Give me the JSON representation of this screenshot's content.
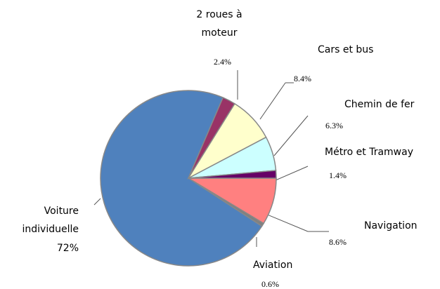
{
  "chart_data": {
    "type": "pie",
    "categories": [
      "Navigation",
      "Aviation",
      "Voiture individuelle",
      "2 roues à moteur",
      "Cars et bus",
      "Chemin de fer",
      "Métro et Tramway"
    ],
    "values": [
      8.6,
      0.6,
      72,
      2.4,
      8.4,
      6.3,
      1.4
    ],
    "value_labels": [
      "8.6%",
      "0.6%",
      "72%",
      "2.4%",
      "8.4%",
      "6.3%",
      "1.4%"
    ],
    "colors": [
      "#ff8080",
      "#808080",
      "#4f81bd",
      "#993366",
      "#ffffcc",
      "#ccffff",
      "#660066"
    ]
  }
}
